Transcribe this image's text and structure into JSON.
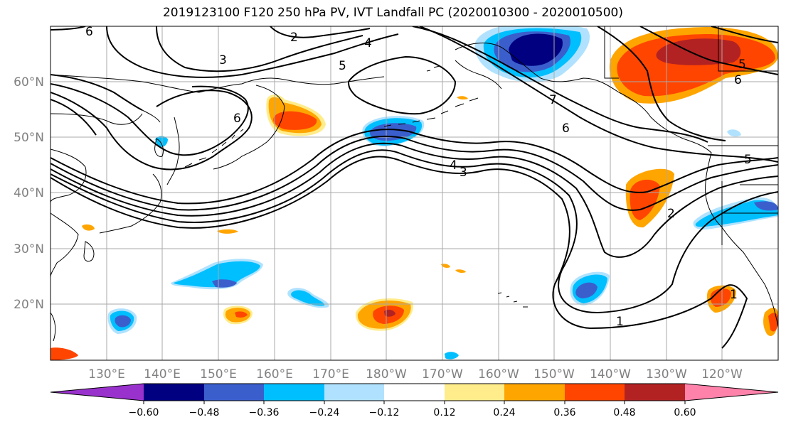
{
  "title": "2019123100 F120 250 hPa PV, IVT Landfall PC (2020010300 - 2020010500)",
  "lat_labels": [
    "60°N",
    "50°N",
    "40°N",
    "30°N",
    "20°N"
  ],
  "lon_labels": [
    "130°E",
    "140°E",
    "150°E",
    "160°E",
    "170°E",
    "180°W",
    "170°W",
    "160°W",
    "150°W",
    "140°W",
    "130°W",
    "120°W"
  ],
  "colorbar": {
    "tick_labels": [
      "−0.60",
      "−0.48",
      "−0.36",
      "−0.24",
      "−0.12",
      "0.12",
      "0.24",
      "0.36",
      "0.48",
      "0.60"
    ],
    "colors": [
      "#9932cc",
      "#000080",
      "#3a5fcd",
      "#00bfff",
      "#b0e2ff",
      "#ffffff",
      "#ffec8b",
      "#ffa500",
      "#ff4500",
      "#b22222",
      "#ff82ab"
    ]
  },
  "contour_labels": [
    "6",
    "2",
    "3",
    "4",
    "5",
    "6",
    "7",
    "6",
    "4",
    "3",
    "5",
    "2",
    "1",
    "1",
    "6",
    "5"
  ],
  "colors": {
    "contour": "#000000",
    "grid": "#a9a9a9",
    "coast": "#000000"
  }
}
